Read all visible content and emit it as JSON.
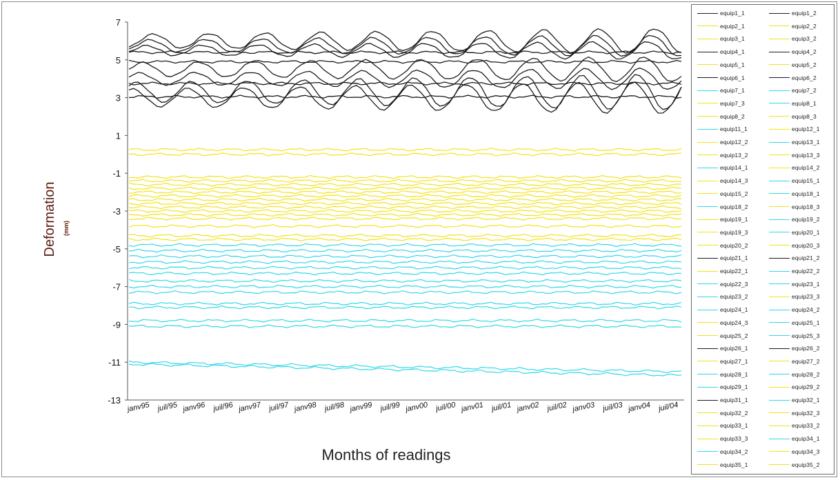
{
  "chart_data": {
    "type": "line",
    "xlabel": "Months of readings",
    "ylabel": "Deformation",
    "ylabel_unit": "(mm)",
    "ylim": [
      -13,
      7
    ],
    "yticks": [
      7,
      5,
      3,
      1,
      -1,
      -3,
      -5,
      -7,
      -9,
      -11,
      -13
    ],
    "x_tick_labels": [
      "janv95",
      "juil/95",
      "janv96",
      "juil/96",
      "janv97",
      "juil/97",
      "janv98",
      "juil/98",
      "janv99",
      "juil/99",
      "janv00",
      "juil/00",
      "janv01",
      "juil/01",
      "janv02",
      "juil/02",
      "janv03",
      "juil/03",
      "janv04",
      "juil/04"
    ],
    "grid": false,
    "legend_position": "right",
    "colors": {
      "black": "#1a1a1a",
      "yellow": "#f2e21a",
      "cyan": "#2fd8e8"
    },
    "seasonal_series": [
      {
        "level": 6.0,
        "amp": 0.35,
        "color": "black"
      },
      {
        "level": 5.75,
        "amp": 0.3,
        "color": "black"
      },
      {
        "level": 5.5,
        "amp": 0.25,
        "color": "black"
      },
      {
        "level": 4.5,
        "amp": 0.35,
        "color": "black"
      },
      {
        "level": 4.0,
        "amp": 0.3,
        "color": "black"
      },
      {
        "level": 3.3,
        "amp": 0.5,
        "color": "black"
      },
      {
        "level": 3.0,
        "amp": 0.45,
        "color": "black"
      }
    ],
    "flat_series": [
      {
        "level": 5.4,
        "color": "black"
      },
      {
        "level": 4.9,
        "color": "black"
      },
      {
        "level": 3.75,
        "color": "black"
      },
      {
        "level": 3.05,
        "color": "black"
      },
      {
        "level": 0.25,
        "color": "yellow"
      },
      {
        "level": 0.0,
        "color": "yellow"
      },
      {
        "level": -1.2,
        "color": "yellow"
      },
      {
        "level": -1.4,
        "color": "yellow"
      },
      {
        "level": -1.6,
        "color": "yellow"
      },
      {
        "level": -1.8,
        "color": "yellow"
      },
      {
        "level": -2.0,
        "color": "yellow"
      },
      {
        "level": -2.2,
        "color": "yellow"
      },
      {
        "level": -2.4,
        "color": "yellow"
      },
      {
        "level": -2.6,
        "color": "yellow"
      },
      {
        "level": -2.8,
        "color": "yellow"
      },
      {
        "level": -3.0,
        "color": "yellow"
      },
      {
        "level": -3.2,
        "color": "yellow"
      },
      {
        "level": -3.4,
        "color": "yellow"
      },
      {
        "level": -3.8,
        "color": "yellow"
      },
      {
        "level": -4.3,
        "color": "yellow"
      },
      {
        "level": -4.5,
        "color": "yellow"
      },
      {
        "level": -4.8,
        "color": "cyan"
      },
      {
        "level": -5.1,
        "color": "cyan"
      },
      {
        "level": -5.4,
        "color": "cyan"
      },
      {
        "level": -5.7,
        "color": "cyan"
      },
      {
        "level": -6.0,
        "color": "cyan"
      },
      {
        "level": -6.3,
        "color": "cyan"
      },
      {
        "level": -6.7,
        "color": "cyan"
      },
      {
        "level": -7.0,
        "color": "cyan"
      },
      {
        "level": -7.3,
        "color": "cyan"
      },
      {
        "level": -7.9,
        "color": "cyan"
      },
      {
        "level": -8.1,
        "color": "cyan"
      },
      {
        "level": -8.8,
        "color": "cyan"
      },
      {
        "level": -9.1,
        "color": "cyan"
      },
      {
        "level": -11.0,
        "end": -11.5,
        "color": "cyan"
      },
      {
        "level": -11.1,
        "end": -11.7,
        "color": "cyan"
      }
    ],
    "legend": [
      {
        "label": "equip1_1",
        "color": "black"
      },
      {
        "label": "equip1_2",
        "color": "black"
      },
      {
        "label": "equip2_1",
        "color": "yellow"
      },
      {
        "label": "equip2_2",
        "color": "yellow"
      },
      {
        "label": "equip3_1",
        "color": "yellow"
      },
      {
        "label": "equip3_2",
        "color": "yellow"
      },
      {
        "label": "equip4_1",
        "color": "black"
      },
      {
        "label": "equip4_2",
        "color": "black"
      },
      {
        "label": "equip5_1",
        "color": "yellow"
      },
      {
        "label": "equip5_2",
        "color": "yellow"
      },
      {
        "label": "equip6_1",
        "color": "black"
      },
      {
        "label": "equip6_2",
        "color": "black"
      },
      {
        "label": "equip7_1",
        "color": "cyan"
      },
      {
        "label": "equip7_2",
        "color": "cyan"
      },
      {
        "label": "equip7_3",
        "color": "yellow"
      },
      {
        "label": "equip8_1",
        "color": "cyan"
      },
      {
        "label": "equip8_2",
        "color": "yellow"
      },
      {
        "label": "equip8_3",
        "color": "yellow"
      },
      {
        "label": "equip11_1",
        "color": "cyan"
      },
      {
        "label": "equip12_1",
        "color": "yellow"
      },
      {
        "label": "equip12_2",
        "color": "yellow"
      },
      {
        "label": "equip13_1",
        "color": "cyan"
      },
      {
        "label": "equip13_2",
        "color": "yellow"
      },
      {
        "label": "equip13_3",
        "color": "yellow"
      },
      {
        "label": "equip14_1",
        "color": "cyan"
      },
      {
        "label": "equip14_2",
        "color": "yellow"
      },
      {
        "label": "equip14_3",
        "color": "yellow"
      },
      {
        "label": "equip15_1",
        "color": "cyan"
      },
      {
        "label": "equip15_2",
        "color": "yellow"
      },
      {
        "label": "equip18_1",
        "color": "cyan"
      },
      {
        "label": "equip18_2",
        "color": "cyan"
      },
      {
        "label": "equip18_3",
        "color": "yellow"
      },
      {
        "label": "equip19_1",
        "color": "yellow"
      },
      {
        "label": "equip19_2",
        "color": "cyan"
      },
      {
        "label": "equip19_3",
        "color": "yellow"
      },
      {
        "label": "equip20_1",
        "color": "cyan"
      },
      {
        "label": "equip20_2",
        "color": "yellow"
      },
      {
        "label": "equip20_3",
        "color": "yellow"
      },
      {
        "label": "equip21_1",
        "color": "black"
      },
      {
        "label": "equip21_2",
        "color": "black"
      },
      {
        "label": "equip22_1",
        "color": "yellow"
      },
      {
        "label": "equip22_2",
        "color": "cyan"
      },
      {
        "label": "equip22_3",
        "color": "cyan"
      },
      {
        "label": "equip23_1",
        "color": "cyan"
      },
      {
        "label": "equip23_2",
        "color": "cyan"
      },
      {
        "label": "equip23_3",
        "color": "yellow"
      },
      {
        "label": "equip24_1",
        "color": "cyan"
      },
      {
        "label": "equip24_2",
        "color": "cyan"
      },
      {
        "label": "equip24_3",
        "color": "yellow"
      },
      {
        "label": "equip25_1",
        "color": "cyan"
      },
      {
        "label": "equip25_2",
        "color": "yellow"
      },
      {
        "label": "equip25_3",
        "color": "cyan"
      },
      {
        "label": "equip26_1",
        "color": "black"
      },
      {
        "label": "equip26_2",
        "color": "black"
      },
      {
        "label": "equip27_1",
        "color": "yellow"
      },
      {
        "label": "equip27_2",
        "color": "yellow"
      },
      {
        "label": "equip28_1",
        "color": "cyan"
      },
      {
        "label": "equip28_2",
        "color": "cyan"
      },
      {
        "label": "equip29_1",
        "color": "cyan"
      },
      {
        "label": "equip29_2",
        "color": "yellow"
      },
      {
        "label": "equip31_1",
        "color": "black"
      },
      {
        "label": "equip32_1",
        "color": "cyan"
      },
      {
        "label": "equip32_2",
        "color": "yellow"
      },
      {
        "label": "equip32_3",
        "color": "yellow"
      },
      {
        "label": "equip33_1",
        "color": "yellow"
      },
      {
        "label": "equip33_2",
        "color": "yellow"
      },
      {
        "label": "equip33_3",
        "color": "yellow"
      },
      {
        "label": "equip34_1",
        "color": "cyan"
      },
      {
        "label": "equip34_2",
        "color": "cyan"
      },
      {
        "label": "equip34_3",
        "color": "yellow"
      },
      {
        "label": "equip35_1",
        "color": "yellow"
      },
      {
        "label": "equip35_2",
        "color": "yellow"
      }
    ]
  }
}
